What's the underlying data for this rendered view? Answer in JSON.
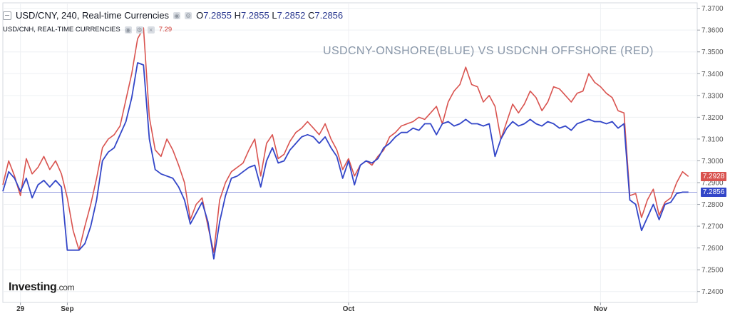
{
  "header": {
    "symbol_line": "USD/CNY, 240, Real-time Currencies",
    "o_label": "O",
    "o": "7.2855",
    "h_label": "H",
    "h": "7.2855",
    "l_label": "L",
    "l": "7.2852",
    "c_label": "C",
    "c": "7.2856"
  },
  "overlay": {
    "label": "USD/CNH, REAL-TIME CURRENCIES",
    "last": "7.29"
  },
  "watermark": "USDCNY-ONSHORE(BLUE) VS USDCNH OFFSHORE (RED)",
  "logo": {
    "main": "Investing",
    "suffix": ".com"
  },
  "price_tags": {
    "red": "7.2928",
    "blue": "7.2856"
  },
  "colors": {
    "red": "#d9534f",
    "blue": "#3346c8",
    "grid": "#eef0f3",
    "axis_text": "#555555"
  },
  "chart_data": {
    "type": "line",
    "title": "USDCNY-ONSHORE(BLUE) VS USDCNH OFFSHORE (RED)",
    "ylim": [
      7.235,
      7.3725
    ],
    "y_ticks": [
      "7.2400",
      "7.2500",
      "7.2600",
      "7.2700",
      "7.2800",
      "7.2900",
      "7.3000",
      "7.3100",
      "7.3200",
      "7.3300",
      "7.3400",
      "7.3500",
      "7.3600",
      "7.3700"
    ],
    "x_ticks": [
      {
        "label": "29",
        "index": 6
      },
      {
        "label": "Sep",
        "index": 22
      },
      {
        "label": "Oct",
        "index": 118
      },
      {
        "label": "Nov",
        "index": 204
      }
    ],
    "bars": 238,
    "reference_line": 7.2856,
    "grid": true,
    "legend": "none",
    "series": [
      {
        "color": "#d9534f",
        "anchors": [
          [
            0,
            7.289
          ],
          [
            2,
            7.3
          ],
          [
            4,
            7.293
          ],
          [
            6,
            7.284
          ],
          [
            8,
            7.301
          ],
          [
            10,
            7.294
          ],
          [
            12,
            7.297
          ],
          [
            14,
            7.302
          ],
          [
            16,
            7.296
          ],
          [
            18,
            7.3
          ],
          [
            20,
            7.294
          ],
          [
            22,
            7.283
          ],
          [
            24,
            7.268
          ],
          [
            26,
            7.259
          ],
          [
            28,
            7.27
          ],
          [
            30,
            7.28
          ],
          [
            32,
            7.292
          ],
          [
            34,
            7.306
          ],
          [
            36,
            7.31
          ],
          [
            38,
            7.312
          ],
          [
            40,
            7.316
          ],
          [
            42,
            7.328
          ],
          [
            44,
            7.34
          ],
          [
            46,
            7.356
          ],
          [
            48,
            7.361
          ],
          [
            50,
            7.32
          ],
          [
            52,
            7.305
          ],
          [
            54,
            7.302
          ],
          [
            56,
            7.31
          ],
          [
            58,
            7.305
          ],
          [
            60,
            7.298
          ],
          [
            62,
            7.29
          ],
          [
            64,
            7.273
          ],
          [
            66,
            7.28
          ],
          [
            68,
            7.283
          ],
          [
            70,
            7.27
          ],
          [
            72,
            7.258
          ],
          [
            74,
            7.282
          ],
          [
            76,
            7.29
          ],
          [
            78,
            7.295
          ],
          [
            80,
            7.297
          ],
          [
            82,
            7.299
          ],
          [
            84,
            7.305
          ],
          [
            86,
            7.31
          ],
          [
            88,
            7.293
          ],
          [
            90,
            7.308
          ],
          [
            92,
            7.312
          ],
          [
            94,
            7.301
          ],
          [
            96,
            7.303
          ],
          [
            98,
            7.309
          ],
          [
            100,
            7.313
          ],
          [
            102,
            7.315
          ],
          [
            104,
            7.318
          ],
          [
            106,
            7.315
          ],
          [
            108,
            7.312
          ],
          [
            110,
            7.317
          ],
          [
            112,
            7.31
          ],
          [
            114,
            7.305
          ],
          [
            116,
            7.296
          ],
          [
            118,
            7.301
          ],
          [
            120,
            7.293
          ],
          [
            122,
            7.298
          ],
          [
            124,
            7.3
          ],
          [
            126,
            7.298
          ],
          [
            128,
            7.302
          ],
          [
            130,
            7.305
          ],
          [
            132,
            7.311
          ],
          [
            134,
            7.313
          ],
          [
            136,
            7.316
          ],
          [
            138,
            7.317
          ],
          [
            140,
            7.318
          ],
          [
            142,
            7.32
          ],
          [
            144,
            7.319
          ],
          [
            146,
            7.322
          ],
          [
            148,
            7.325
          ],
          [
            150,
            7.317
          ],
          [
            152,
            7.327
          ],
          [
            154,
            7.332
          ],
          [
            156,
            7.335
          ],
          [
            158,
            7.343
          ],
          [
            160,
            7.335
          ],
          [
            162,
            7.334
          ],
          [
            164,
            7.327
          ],
          [
            166,
            7.33
          ],
          [
            168,
            7.325
          ],
          [
            170,
            7.31
          ],
          [
            172,
            7.318
          ],
          [
            174,
            7.326
          ],
          [
            176,
            7.322
          ],
          [
            178,
            7.326
          ],
          [
            180,
            7.332
          ],
          [
            182,
            7.329
          ],
          [
            184,
            7.323
          ],
          [
            186,
            7.327
          ],
          [
            188,
            7.334
          ],
          [
            190,
            7.333
          ],
          [
            192,
            7.33
          ],
          [
            194,
            7.327
          ],
          [
            196,
            7.331
          ],
          [
            198,
            7.332
          ],
          [
            200,
            7.34
          ],
          [
            202,
            7.336
          ],
          [
            204,
            7.334
          ],
          [
            206,
            7.331
          ],
          [
            208,
            7.329
          ],
          [
            210,
            7.323
          ],
          [
            212,
            7.322
          ],
          [
            214,
            7.284
          ],
          [
            216,
            7.285
          ],
          [
            218,
            7.274
          ],
          [
            220,
            7.282
          ],
          [
            222,
            7.287
          ],
          [
            224,
            7.275
          ],
          [
            226,
            7.281
          ],
          [
            228,
            7.283
          ],
          [
            230,
            7.29
          ],
          [
            232,
            7.295
          ],
          [
            234,
            7.2928
          ]
        ]
      },
      {
        "color": "#3346c8",
        "anchors": [
          [
            0,
            7.286
          ],
          [
            2,
            7.295
          ],
          [
            4,
            7.292
          ],
          [
            6,
            7.286
          ],
          [
            8,
            7.292
          ],
          [
            10,
            7.283
          ],
          [
            12,
            7.289
          ],
          [
            14,
            7.291
          ],
          [
            16,
            7.288
          ],
          [
            18,
            7.291
          ],
          [
            20,
            7.288
          ],
          [
            22,
            7.259
          ],
          [
            24,
            7.259
          ],
          [
            26,
            7.259
          ],
          [
            28,
            7.262
          ],
          [
            30,
            7.27
          ],
          [
            32,
            7.282
          ],
          [
            34,
            7.3
          ],
          [
            36,
            7.304
          ],
          [
            38,
            7.306
          ],
          [
            40,
            7.312
          ],
          [
            42,
            7.318
          ],
          [
            44,
            7.329
          ],
          [
            46,
            7.345
          ],
          [
            48,
            7.344
          ],
          [
            50,
            7.31
          ],
          [
            52,
            7.296
          ],
          [
            54,
            7.294
          ],
          [
            56,
            7.293
          ],
          [
            58,
            7.292
          ],
          [
            60,
            7.288
          ],
          [
            62,
            7.282
          ],
          [
            64,
            7.271
          ],
          [
            66,
            7.276
          ],
          [
            68,
            7.281
          ],
          [
            70,
            7.272
          ],
          [
            72,
            7.255
          ],
          [
            74,
            7.272
          ],
          [
            76,
            7.284
          ],
          [
            78,
            7.292
          ],
          [
            80,
            7.293
          ],
          [
            82,
            7.295
          ],
          [
            84,
            7.297
          ],
          [
            86,
            7.298
          ],
          [
            88,
            7.288
          ],
          [
            90,
            7.3
          ],
          [
            92,
            7.306
          ],
          [
            94,
            7.299
          ],
          [
            96,
            7.3
          ],
          [
            98,
            7.305
          ],
          [
            100,
            7.308
          ],
          [
            102,
            7.311
          ],
          [
            104,
            7.312
          ],
          [
            106,
            7.311
          ],
          [
            108,
            7.308
          ],
          [
            110,
            7.311
          ],
          [
            112,
            7.306
          ],
          [
            114,
            7.302
          ],
          [
            116,
            7.292
          ],
          [
            118,
            7.3
          ],
          [
            120,
            7.289
          ],
          [
            122,
            7.298
          ],
          [
            124,
            7.3
          ],
          [
            126,
            7.299
          ],
          [
            128,
            7.301
          ],
          [
            130,
            7.306
          ],
          [
            132,
            7.308
          ],
          [
            134,
            7.311
          ],
          [
            136,
            7.313
          ],
          [
            138,
            7.313
          ],
          [
            140,
            7.315
          ],
          [
            142,
            7.314
          ],
          [
            144,
            7.317
          ],
          [
            146,
            7.317
          ],
          [
            148,
            7.312
          ],
          [
            150,
            7.317
          ],
          [
            152,
            7.318
          ],
          [
            154,
            7.316
          ],
          [
            156,
            7.317
          ],
          [
            158,
            7.319
          ],
          [
            160,
            7.317
          ],
          [
            162,
            7.317
          ],
          [
            164,
            7.316
          ],
          [
            166,
            7.317
          ],
          [
            168,
            7.302
          ],
          [
            170,
            7.31
          ],
          [
            172,
            7.315
          ],
          [
            174,
            7.318
          ],
          [
            176,
            7.316
          ],
          [
            178,
            7.317
          ],
          [
            180,
            7.319
          ],
          [
            182,
            7.317
          ],
          [
            184,
            7.316
          ],
          [
            186,
            7.318
          ],
          [
            188,
            7.317
          ],
          [
            190,
            7.315
          ],
          [
            192,
            7.316
          ],
          [
            194,
            7.314
          ],
          [
            196,
            7.317
          ],
          [
            198,
            7.318
          ],
          [
            200,
            7.319
          ],
          [
            202,
            7.318
          ],
          [
            204,
            7.318
          ],
          [
            206,
            7.317
          ],
          [
            208,
            7.318
          ],
          [
            210,
            7.315
          ],
          [
            212,
            7.317
          ],
          [
            214,
            7.282
          ],
          [
            216,
            7.28
          ],
          [
            218,
            7.268
          ],
          [
            220,
            7.274
          ],
          [
            222,
            7.28
          ],
          [
            224,
            7.273
          ],
          [
            226,
            7.28
          ],
          [
            228,
            7.281
          ],
          [
            230,
            7.285
          ],
          [
            232,
            7.2856
          ],
          [
            234,
            7.2856
          ]
        ]
      }
    ]
  }
}
